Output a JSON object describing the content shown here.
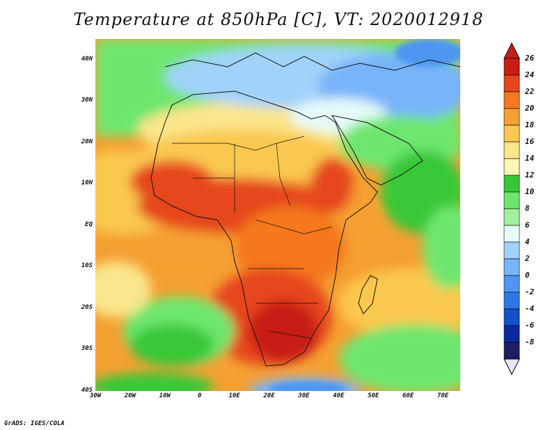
{
  "title": "Temperature at 850hPa [C], VT: 2020012918",
  "credit": "GrADS: IGES/COLA",
  "map": {
    "region": "Africa",
    "lon_range": [
      -30,
      75
    ],
    "lat_range": [
      -40,
      45
    ],
    "lat_labels": [
      "40N",
      "30N",
      "20N",
      "10N",
      "EQ",
      "10S",
      "20S",
      "30S",
      "40S"
    ],
    "lat_values": [
      40,
      30,
      20,
      10,
      0,
      -10,
      -20,
      -30,
      -40
    ],
    "lon_labels": [
      "30W",
      "20W",
      "10W",
      "0",
      "10E",
      "20E",
      "30E",
      "40E",
      "50E",
      "60E",
      "70E"
    ],
    "lon_values": [
      -30,
      -20,
      -10,
      0,
      10,
      20,
      30,
      40,
      50,
      60,
      70
    ]
  },
  "colorbar": {
    "labels": [
      "26",
      "24",
      "22",
      "20",
      "18",
      "16",
      "14",
      "12",
      "10",
      "8",
      "6",
      "4",
      "2",
      "0",
      "-2",
      "-4",
      "-6",
      "-8"
    ],
    "colors": [
      "#c81e14",
      "#e6461e",
      "#f5781e",
      "#f5a032",
      "#fac850",
      "#fae68c",
      "#fff5b4",
      "#37c837",
      "#6ee66e",
      "#a0f0a0",
      "#e6fafa",
      "#a0d2fa",
      "#78b4fa",
      "#5096f0",
      "#2d78e6",
      "#1450c8",
      "#0a28a0",
      "#1e1e64"
    ],
    "top_arrow_color": "#c81e14",
    "bottom_arrow_color": "#e6e6ff"
  }
}
